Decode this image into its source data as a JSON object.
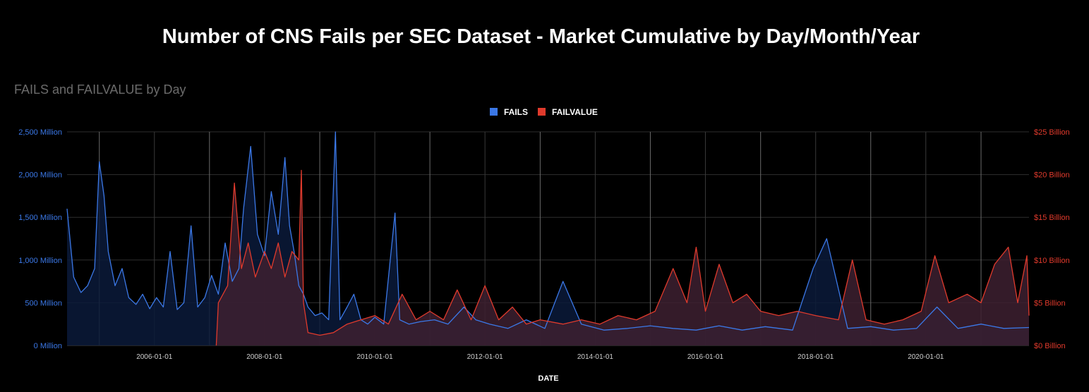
{
  "title": "Number of CNS Fails per SEC Dataset - Market Cumulative by Day/Month/Year",
  "chart_data": {
    "type": "area",
    "subtitle": "FAILS and FAILVALUE by Day",
    "xlabel": "DATE",
    "x_range": [
      "2004-06-01",
      "2021-11-15"
    ],
    "x_ticks": [
      "2006-01-01",
      "2008-01-01",
      "2010-01-01",
      "2012-01-01",
      "2014-01-01",
      "2016-01-01",
      "2018-01-01",
      "2020-01-01"
    ],
    "grid": true,
    "legend_position": "top",
    "y_left": {
      "ylim": [
        0,
        2500
      ],
      "unit": "Million",
      "ticks": [
        "0 Million",
        "500 Million",
        "1,000 Million",
        "1,500 Million",
        "2,000 Million",
        "2,500 Million"
      ],
      "color": "#3b78e7"
    },
    "y_right": {
      "ylim": [
        0,
        25
      ],
      "unit": "Billion",
      "ticks": [
        "$0 Billion",
        "$5 Billion",
        "$10 Billion",
        "$15 Billion",
        "$20 Billion",
        "$25 Billion"
      ],
      "color": "#e03a2c"
    },
    "series": [
      {
        "name": "FAILS",
        "axis": "left",
        "color": "#3b78e7",
        "fill": "#0a1a3a",
        "points": [
          [
            "2004-06-01",
            1600
          ],
          [
            "2004-07-15",
            800
          ],
          [
            "2004-09-01",
            620
          ],
          [
            "2004-10-15",
            700
          ],
          [
            "2004-12-01",
            900
          ],
          [
            "2005-01-01",
            2150
          ],
          [
            "2005-02-01",
            1750
          ],
          [
            "2005-03-01",
            1100
          ],
          [
            "2005-04-15",
            700
          ],
          [
            "2005-06-01",
            900
          ],
          [
            "2005-07-15",
            560
          ],
          [
            "2005-09-01",
            480
          ],
          [
            "2005-10-15",
            600
          ],
          [
            "2005-12-01",
            430
          ],
          [
            "2006-01-15",
            560
          ],
          [
            "2006-03-01",
            450
          ],
          [
            "2006-04-15",
            1100
          ],
          [
            "2006-06-01",
            420
          ],
          [
            "2006-07-15",
            500
          ],
          [
            "2006-09-01",
            1400
          ],
          [
            "2006-10-15",
            450
          ],
          [
            "2006-12-01",
            560
          ],
          [
            "2007-01-15",
            820
          ],
          [
            "2007-03-01",
            600
          ],
          [
            "2007-04-15",
            1200
          ],
          [
            "2007-06-01",
            750
          ],
          [
            "2007-07-15",
            900
          ],
          [
            "2007-08-15",
            1600
          ],
          [
            "2007-10-01",
            2330
          ],
          [
            "2007-11-15",
            1300
          ],
          [
            "2008-01-01",
            1050
          ],
          [
            "2008-02-15",
            1800
          ],
          [
            "2008-04-01",
            1300
          ],
          [
            "2008-05-15",
            2200
          ],
          [
            "2008-06-15",
            1400
          ],
          [
            "2008-07-15",
            1100
          ],
          [
            "2008-08-15",
            700
          ],
          [
            "2008-09-15",
            600
          ],
          [
            "2008-10-15",
            450
          ],
          [
            "2008-12-01",
            350
          ],
          [
            "2009-01-15",
            380
          ],
          [
            "2009-03-01",
            300
          ],
          [
            "2009-04-15",
            2500
          ],
          [
            "2009-05-15",
            300
          ],
          [
            "2009-07-01",
            450
          ],
          [
            "2009-08-15",
            600
          ],
          [
            "2009-10-01",
            300
          ],
          [
            "2009-11-15",
            250
          ],
          [
            "2010-01-01",
            330
          ],
          [
            "2010-03-01",
            250
          ],
          [
            "2010-05-15",
            1550
          ],
          [
            "2010-06-15",
            300
          ],
          [
            "2010-08-15",
            250
          ],
          [
            "2010-11-01",
            280
          ],
          [
            "2011-02-01",
            300
          ],
          [
            "2011-05-01",
            250
          ],
          [
            "2011-08-15",
            450
          ],
          [
            "2011-11-01",
            300
          ],
          [
            "2012-02-01",
            250
          ],
          [
            "2012-06-01",
            200
          ],
          [
            "2012-10-01",
            300
          ],
          [
            "2013-02-01",
            200
          ],
          [
            "2013-06-01",
            750
          ],
          [
            "2013-10-01",
            250
          ],
          [
            "2014-03-01",
            180
          ],
          [
            "2014-08-01",
            200
          ],
          [
            "2015-01-01",
            230
          ],
          [
            "2015-06-01",
            200
          ],
          [
            "2015-11-01",
            180
          ],
          [
            "2016-04-01",
            230
          ],
          [
            "2016-09-01",
            180
          ],
          [
            "2017-02-01",
            220
          ],
          [
            "2017-08-01",
            180
          ],
          [
            "2017-12-15",
            900
          ],
          [
            "2018-03-15",
            1250
          ],
          [
            "2018-08-01",
            200
          ],
          [
            "2019-01-01",
            220
          ],
          [
            "2019-06-01",
            180
          ],
          [
            "2019-11-01",
            200
          ],
          [
            "2020-03-15",
            450
          ],
          [
            "2020-08-01",
            200
          ],
          [
            "2021-01-01",
            250
          ],
          [
            "2021-06-01",
            200
          ],
          [
            "2021-11-15",
            210
          ]
        ]
      },
      {
        "name": "FAILVALUE",
        "axis": "right",
        "color": "#e03a2c",
        "fill": "#3d2030",
        "points": [
          [
            "2007-02-15",
            0
          ],
          [
            "2007-03-01",
            5
          ],
          [
            "2007-05-01",
            7
          ],
          [
            "2007-06-15",
            19
          ],
          [
            "2007-08-01",
            9
          ],
          [
            "2007-09-15",
            12
          ],
          [
            "2007-11-01",
            8
          ],
          [
            "2008-01-01",
            11
          ],
          [
            "2008-02-15",
            9
          ],
          [
            "2008-04-01",
            12
          ],
          [
            "2008-05-15",
            8
          ],
          [
            "2008-07-01",
            11
          ],
          [
            "2008-08-15",
            10
          ],
          [
            "2008-09-01",
            20.5
          ],
          [
            "2008-09-15",
            5
          ],
          [
            "2008-10-15",
            1.5
          ],
          [
            "2009-01-01",
            1.2
          ],
          [
            "2009-04-01",
            1.5
          ],
          [
            "2009-07-01",
            2.5
          ],
          [
            "2009-10-01",
            3
          ],
          [
            "2010-01-01",
            3.5
          ],
          [
            "2010-04-01",
            2.5
          ],
          [
            "2010-07-01",
            6
          ],
          [
            "2010-10-01",
            3
          ],
          [
            "2011-01-01",
            4
          ],
          [
            "2011-04-01",
            3
          ],
          [
            "2011-07-01",
            6.5
          ],
          [
            "2011-10-01",
            3
          ],
          [
            "2012-01-01",
            7
          ],
          [
            "2012-04-01",
            3
          ],
          [
            "2012-07-01",
            4.5
          ],
          [
            "2012-10-01",
            2.5
          ],
          [
            "2013-01-01",
            3
          ],
          [
            "2013-06-01",
            2.5
          ],
          [
            "2013-10-01",
            3
          ],
          [
            "2014-02-01",
            2.5
          ],
          [
            "2014-06-01",
            3.5
          ],
          [
            "2014-10-01",
            3
          ],
          [
            "2015-02-01",
            4
          ],
          [
            "2015-06-01",
            9
          ],
          [
            "2015-09-01",
            5
          ],
          [
            "2015-11-01",
            11.5
          ],
          [
            "2016-01-01",
            4
          ],
          [
            "2016-04-01",
            9.5
          ],
          [
            "2016-07-01",
            5
          ],
          [
            "2016-10-01",
            6
          ],
          [
            "2017-01-01",
            4
          ],
          [
            "2017-05-01",
            3.5
          ],
          [
            "2017-09-01",
            4
          ],
          [
            "2018-01-01",
            3.5
          ],
          [
            "2018-06-01",
            3
          ],
          [
            "2018-09-01",
            10
          ],
          [
            "2018-12-01",
            3
          ],
          [
            "2019-04-01",
            2.5
          ],
          [
            "2019-08-01",
            3
          ],
          [
            "2019-12-01",
            4
          ],
          [
            "2020-03-01",
            10.5
          ],
          [
            "2020-06-01",
            5
          ],
          [
            "2020-10-01",
            6
          ],
          [
            "2021-01-01",
            5
          ],
          [
            "2021-04-01",
            9.5
          ],
          [
            "2021-07-01",
            11.5
          ],
          [
            "2021-09-01",
            5
          ],
          [
            "2021-11-01",
            10.5
          ],
          [
            "2021-11-15",
            3.5
          ]
        ]
      }
    ]
  }
}
